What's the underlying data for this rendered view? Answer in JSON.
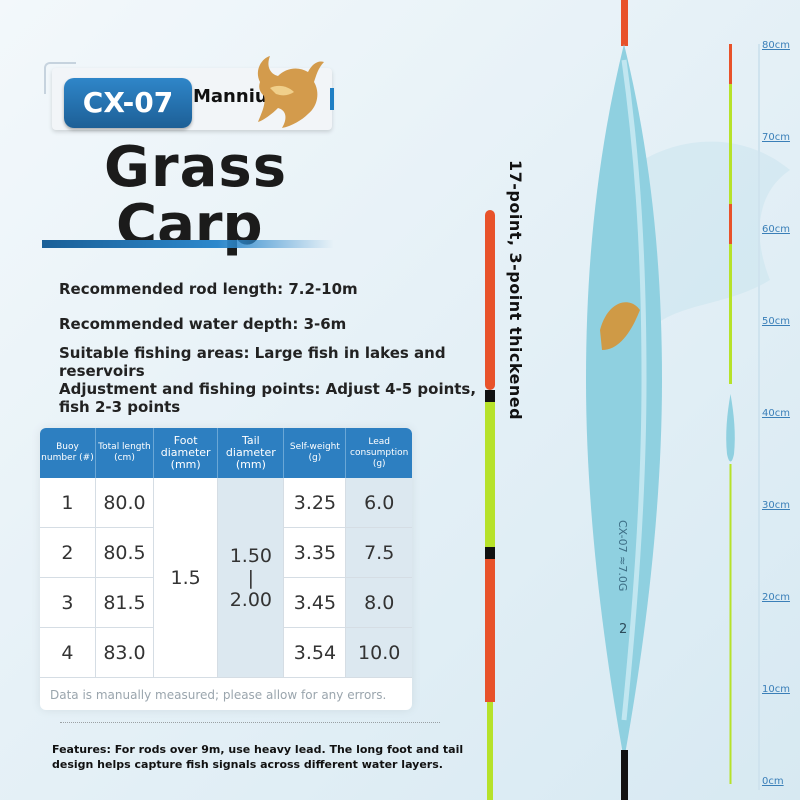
{
  "header": {
    "model": "CX-07",
    "brand": "Manniu"
  },
  "title": {
    "line1": "Grass",
    "line2": "Carp"
  },
  "specs": [
    {
      "text": "Recommended rod length: 7.2-10m"
    },
    {
      "text": "Recommended water depth: 3-6m"
    },
    {
      "text": "Suitable fishing areas: Large fish in lakes and reservoirs"
    },
    {
      "text": "Adjustment and fishing points: Adjust 4-5 points, fish 2-3 points"
    }
  ],
  "table": {
    "headers": {
      "buoy": "Buoy number (#)",
      "length": "Total length (cm)",
      "foot": "Foot diameter (mm)",
      "tail": "Tail diameter (mm)",
      "weight": "Self-weight (g)",
      "lead": "Lead consumption (g)"
    },
    "foot_value": "1.5",
    "tail_value": {
      "top": "1.50",
      "sep": "|",
      "bottom": "2.00"
    },
    "rows": [
      {
        "buoy": "1",
        "length": "80.0",
        "weight": "3.25",
        "lead": "6.0"
      },
      {
        "buoy": "2",
        "length": "80.5",
        "weight": "3.35",
        "lead": "7.5"
      },
      {
        "buoy": "3",
        "length": "81.5",
        "weight": "3.45",
        "lead": "8.0"
      },
      {
        "buoy": "4",
        "length": "83.0",
        "weight": "3.54",
        "lead": "10.0"
      }
    ],
    "footnote": "Data is manually measured; please allow for any errors."
  },
  "features": "Features: For rods over 9m, use heavy lead. The long foot and tail design helps capture fish signals across different water layers.",
  "vertical_caption": "17-point, 3-point thickened",
  "float_body": {
    "label": "CX-07 ≈7.0G",
    "number": "2"
  },
  "scale": [
    "80cm",
    "70cm",
    "60cm",
    "50cm",
    "40cm",
    "30cm",
    "20cm",
    "10cm",
    "0cm"
  ],
  "colors": {
    "accent": "#2d7fc1",
    "float_body": "#8fd0e0",
    "tail_orange": "#e8522a",
    "tail_green": "#b6e22a"
  },
  "icons": [
    "bull-logo-icon"
  ]
}
